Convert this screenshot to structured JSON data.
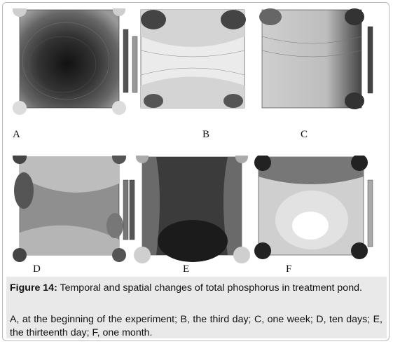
{
  "panels": [
    {
      "id": "A",
      "label": "A",
      "style": "dark-center"
    },
    {
      "id": "B",
      "label": "B",
      "style": "light-x"
    },
    {
      "id": "C",
      "label": "C",
      "style": "light-grad"
    },
    {
      "id": "D",
      "label": "D",
      "style": "gray-bands"
    },
    {
      "id": "E",
      "label": "E",
      "style": "dark-bottom"
    },
    {
      "id": "F",
      "label": "F",
      "style": "light-center"
    }
  ],
  "figure": {
    "label": "Figure 14:",
    "title": "Temporal and spatial changes of total phosphorus in treatment pond.",
    "description": "A, at the beginning of the experiment; B, the third day; C, one week; D, ten days; E, the thirteenth day; F, one month."
  }
}
